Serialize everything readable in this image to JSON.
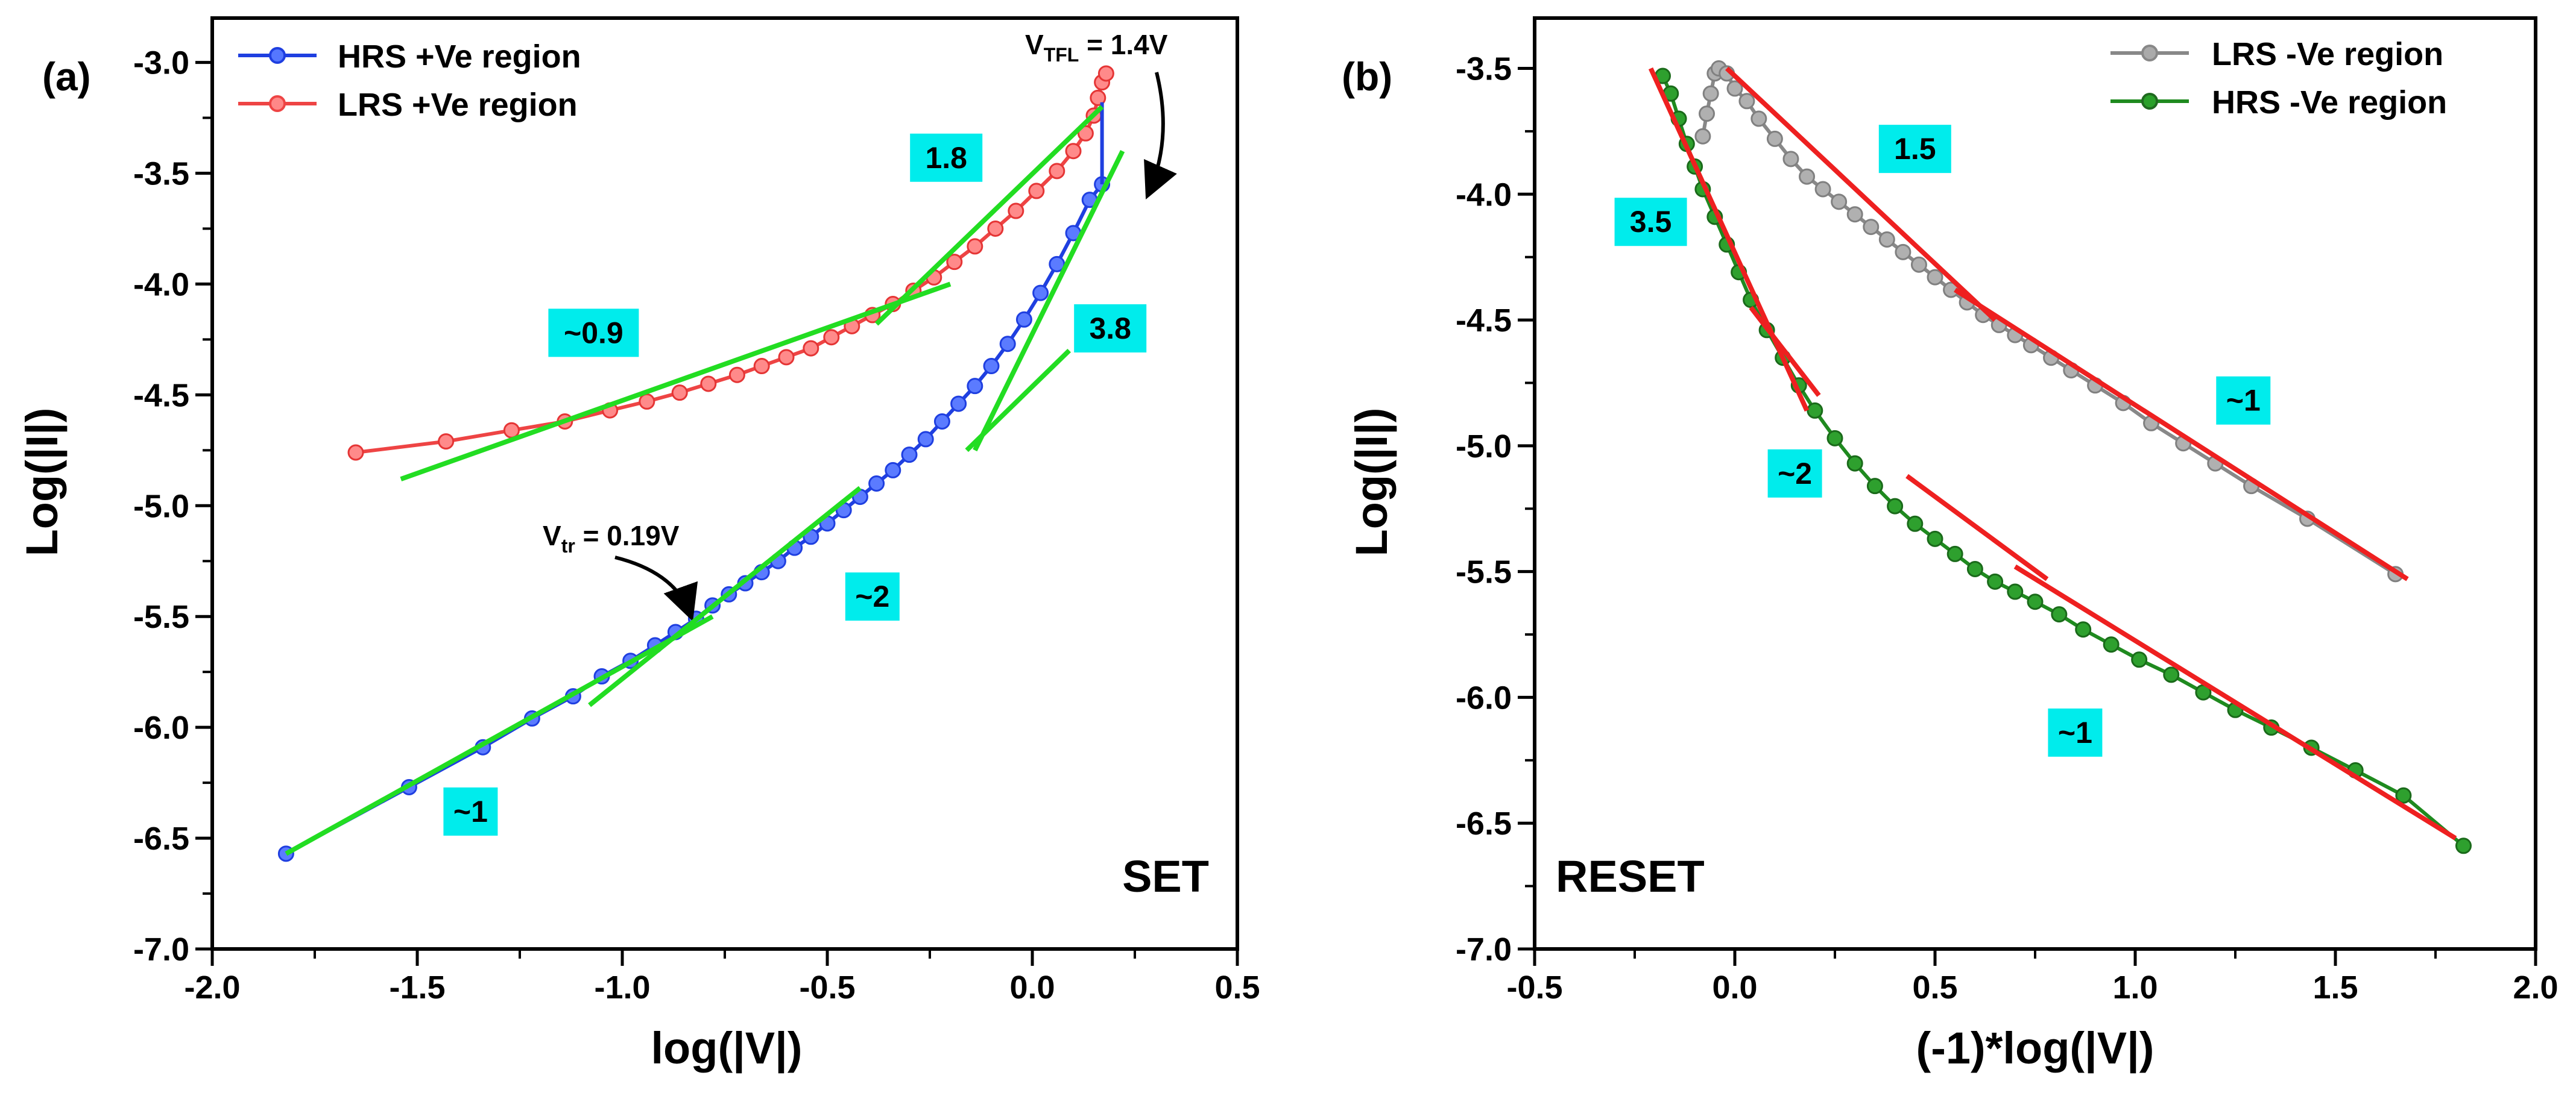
{
  "chart_data": [
    {
      "type": "line",
      "panel_label": "(a)",
      "corner_label": "SET",
      "xlabel": "log(|V|)",
      "ylabel": "Log(|I|)",
      "xlim": [
        -2.0,
        0.5
      ],
      "ylim": [
        -7.0,
        -2.8
      ],
      "xticks": [
        -2.0,
        -1.5,
        -1.0,
        -0.5,
        0.0,
        0.5
      ],
      "xtick_labels": [
        "-2.0",
        "-1.5",
        "-1.0",
        "-0.5",
        "0.0",
        "0.5"
      ],
      "yticks": [
        -7.0,
        -6.5,
        -6.0,
        -5.5,
        -5.0,
        -4.5,
        -4.0,
        -3.5,
        -3.0
      ],
      "ytick_labels": [
        "-7.0",
        "-6.5",
        "-6.0",
        "-5.5",
        "-5.0",
        "-4.5",
        "-4.0",
        "-3.5",
        "-3.0"
      ],
      "legend_position": "top-left",
      "series": [
        {
          "name": "HRS +Ve region",
          "color": "#1f3fe0",
          "x": [
            -1.82,
            -1.52,
            -1.34,
            -1.22,
            -1.12,
            -1.05,
            -0.98,
            -0.92,
            -0.87,
            -0.82,
            -0.78,
            -0.74,
            -0.7,
            -0.66,
            -0.62,
            -0.58,
            -0.54,
            -0.5,
            -0.46,
            -0.42,
            -0.38,
            -0.34,
            -0.3,
            -0.26,
            -0.22,
            -0.18,
            -0.14,
            -0.1,
            -0.06,
            -0.02,
            0.02,
            0.06,
            0.1,
            0.14,
            0.17
          ],
          "y": [
            -6.57,
            -6.27,
            -6.09,
            -5.96,
            -5.86,
            -5.77,
            -5.7,
            -5.63,
            -5.57,
            -5.51,
            -5.45,
            -5.4,
            -5.35,
            -5.3,
            -5.25,
            -5.19,
            -5.14,
            -5.08,
            -5.02,
            -4.96,
            -4.9,
            -4.84,
            -4.77,
            -4.7,
            -4.62,
            -4.54,
            -4.46,
            -4.37,
            -4.27,
            -4.16,
            -4.04,
            -3.91,
            -3.77,
            -3.62,
            -3.55
          ]
        },
        {
          "name": "LRS +Ve region",
          "color": "#ee4444",
          "x": [
            -1.65,
            -1.43,
            -1.27,
            -1.14,
            -1.03,
            -0.94,
            -0.86,
            -0.79,
            -0.72,
            -0.66,
            -0.6,
            -0.54,
            -0.49,
            -0.44,
            -0.39,
            -0.34,
            -0.29,
            -0.24,
            -0.19,
            -0.14,
            -0.09,
            -0.04,
            0.01,
            0.06,
            0.1,
            0.13,
            0.15,
            0.16,
            0.17,
            0.18
          ],
          "y": [
            -4.76,
            -4.71,
            -4.66,
            -4.62,
            -4.57,
            -4.53,
            -4.49,
            -4.45,
            -4.41,
            -4.37,
            -4.33,
            -4.29,
            -4.24,
            -4.19,
            -4.14,
            -4.09,
            -4.03,
            -3.97,
            -3.9,
            -3.83,
            -3.75,
            -3.67,
            -3.58,
            -3.49,
            -3.4,
            -3.32,
            -3.24,
            -3.16,
            -3.09,
            -3.05
          ]
        }
      ],
      "fit_lines": [
        {
          "color": "#22dd22",
          "x": [
            -1.82,
            -0.78
          ],
          "y": [
            -6.57,
            -5.5
          ]
        },
        {
          "color": "#22dd22",
          "x": [
            -1.08,
            -0.42
          ],
          "y": [
            -5.9,
            -4.92
          ]
        },
        {
          "color": "#22dd22",
          "x": [
            -0.14,
            0.22
          ],
          "y": [
            -4.75,
            -3.4
          ]
        },
        {
          "color": "#22dd22",
          "x": [
            -0.16,
            0.09
          ],
          "y": [
            -4.75,
            -4.3
          ]
        },
        {
          "color": "#22dd22",
          "x": [
            -1.54,
            -0.2
          ],
          "y": [
            -4.88,
            -4.0
          ]
        },
        {
          "color": "#22dd22",
          "x": [
            -0.38,
            0.17
          ],
          "y": [
            -4.18,
            -3.2
          ]
        }
      ],
      "vertical_jump": {
        "color": "#1f3fe0",
        "x": 0.17,
        "y": [
          -3.55,
          -3.18
        ]
      },
      "slope_labels": [
        {
          "text": "~1",
          "x": -1.37,
          "y": -6.38
        },
        {
          "text": "~2",
          "x": -0.39,
          "y": -5.41
        },
        {
          "text": "3.8",
          "x": 0.19,
          "y": -4.2
        },
        {
          "text": "~0.9",
          "x": -1.07,
          "y": -4.22
        },
        {
          "text": "1.8",
          "x": -0.21,
          "y": -3.43
        }
      ],
      "annotations": [
        {
          "base": "V",
          "sub": "tr",
          "rest": " = 0.19V",
          "x": -0.98,
          "y": -5.25
        },
        {
          "base": "V",
          "sub": "TFL",
          "rest": " = 1.4V",
          "x": 0.18,
          "y": -2.91
        }
      ]
    },
    {
      "type": "line",
      "panel_label": "(b)",
      "corner_label": "RESET",
      "xlabel": "(-1)*log(|V|)",
      "ylabel": "Log(|I|)",
      "xlim": [
        -0.5,
        2.0
      ],
      "ylim": [
        -7.0,
        -3.3
      ],
      "xticks": [
        -0.5,
        0.0,
        0.5,
        1.0,
        1.5,
        2.0
      ],
      "xtick_labels": [
        "-0.5",
        "0.0",
        "0.5",
        "1.0",
        "1.5",
        "2.0"
      ],
      "yticks": [
        -7.0,
        -6.5,
        -6.0,
        -5.5,
        -5.0,
        -4.5,
        -4.0,
        -3.5
      ],
      "ytick_labels": [
        "-7.0",
        "-6.5",
        "-6.0",
        "-5.5",
        "-5.0",
        "-4.5",
        "-4.0",
        "-3.5"
      ],
      "legend_position": "top-right",
      "series": [
        {
          "name": "LRS -Ve region",
          "color": "#888888",
          "x": [
            -0.08,
            -0.07,
            -0.06,
            -0.05,
            -0.04,
            -0.02,
            0.0,
            0.03,
            0.06,
            0.1,
            0.14,
            0.18,
            0.22,
            0.26,
            0.3,
            0.34,
            0.38,
            0.42,
            0.46,
            0.5,
            0.54,
            0.58,
            0.62,
            0.66,
            0.7,
            0.74,
            0.79,
            0.84,
            0.9,
            0.97,
            1.04,
            1.12,
            1.2,
            1.29,
            1.43,
            1.65
          ],
          "y": [
            -3.77,
            -3.68,
            -3.6,
            -3.52,
            -3.5,
            -3.52,
            -3.58,
            -3.63,
            -3.7,
            -3.78,
            -3.86,
            -3.93,
            -3.98,
            -4.03,
            -4.08,
            -4.13,
            -4.18,
            -4.23,
            -4.28,
            -4.33,
            -4.38,
            -4.43,
            -4.48,
            -4.52,
            -4.56,
            -4.6,
            -4.65,
            -4.7,
            -4.76,
            -4.83,
            -4.91,
            -4.99,
            -5.07,
            -5.16,
            -5.29,
            -5.51
          ]
        },
        {
          "name": "HRS -Ve region",
          "color": "#1f8a1f",
          "x": [
            -0.18,
            -0.16,
            -0.14,
            -0.12,
            -0.1,
            -0.08,
            -0.05,
            -0.02,
            0.01,
            0.04,
            0.08,
            0.12,
            0.16,
            0.2,
            0.25,
            0.3,
            0.35,
            0.4,
            0.45,
            0.5,
            0.55,
            0.6,
            0.65,
            0.7,
            0.75,
            0.81,
            0.87,
            0.94,
            1.01,
            1.09,
            1.17,
            1.25,
            1.34,
            1.44,
            1.55,
            1.67,
            1.82
          ],
          "y": [
            -3.53,
            -3.6,
            -3.7,
            -3.8,
            -3.89,
            -3.98,
            -4.09,
            -4.2,
            -4.31,
            -4.42,
            -4.54,
            -4.65,
            -4.76,
            -4.86,
            -4.97,
            -5.07,
            -5.16,
            -5.24,
            -5.31,
            -5.37,
            -5.43,
            -5.49,
            -5.54,
            -5.58,
            -5.62,
            -5.67,
            -5.73,
            -5.79,
            -5.85,
            -5.91,
            -5.98,
            -6.05,
            -6.12,
            -6.2,
            -6.29,
            -6.39,
            -6.59
          ]
        }
      ],
      "fit_lines": [
        {
          "color": "#ee2020",
          "x": [
            -0.02,
            0.65
          ],
          "y": [
            -3.5,
            -4.5
          ]
        },
        {
          "color": "#ee2020",
          "x": [
            0.55,
            1.68
          ],
          "y": [
            -4.38,
            -5.53
          ]
        },
        {
          "color": "#ee2020",
          "x": [
            -0.21,
            0.18
          ],
          "y": [
            -3.5,
            -4.86
          ]
        },
        {
          "color": "#ee2020",
          "x": [
            0.04,
            0.21
          ],
          "y": [
            -4.45,
            -4.8
          ]
        },
        {
          "color": "#ee2020",
          "x": [
            0.43,
            0.78
          ],
          "y": [
            -5.12,
            -5.53
          ]
        },
        {
          "color": "#ee2020",
          "x": [
            0.7,
            1.8
          ],
          "y": [
            -5.48,
            -6.56
          ]
        }
      ],
      "slope_labels": [
        {
          "text": "1.5",
          "x": 0.45,
          "y": -3.82
        },
        {
          "text": "3.5",
          "x": -0.21,
          "y": -4.11
        },
        {
          "text": "~1",
          "x": 1.27,
          "y": -4.82
        },
        {
          "text": "~2",
          "x": 0.15,
          "y": -5.11
        },
        {
          "text": "~1",
          "x": 0.85,
          "y": -6.14
        }
      ]
    }
  ]
}
